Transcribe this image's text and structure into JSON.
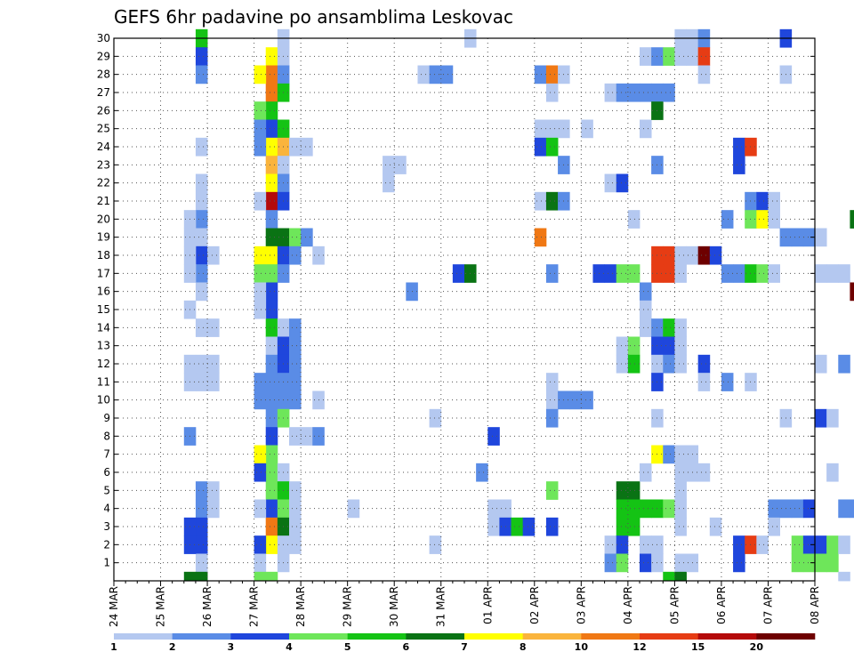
{
  "chart_data": {
    "type": "heatmap",
    "title": "GEFS 6hr padavine po ansamblima Leskovac",
    "xlabel": "",
    "ylabel": "",
    "x_ticks": [
      "24 MAR",
      "25 MAR",
      "26 MAR",
      "27 MAR",
      "28 MAR",
      "29 MAR",
      "30 MAR",
      "31 MAR",
      "01 APR",
      "02 APR",
      "03 APR",
      "04 APR",
      "05 APR",
      "06 APR",
      "07 APR",
      "08 APR"
    ],
    "y_ticks": [
      "1",
      "2",
      "3",
      "4",
      "5",
      "6",
      "7",
      "8",
      "9",
      "10",
      "11",
      "12",
      "13",
      "14",
      "15",
      "16",
      "17",
      "18",
      "19",
      "20",
      "21",
      "22",
      "23",
      "24",
      "25",
      "26",
      "27",
      "28",
      "29",
      "30"
    ],
    "ylim": [
      0,
      30
    ],
    "x_step_hours": 6,
    "x_start": "24 MAR 00",
    "grid": true,
    "legend": {
      "position": "bottom",
      "levels": [
        "1",
        "2",
        "3",
        "4",
        "5",
        "6",
        "7",
        "8",
        "10",
        "12",
        "15",
        "20"
      ],
      "colors": [
        "#b4c8f0",
        "#5a8ce6",
        "#1f46dc",
        "#6ee65a",
        "#14c314",
        "#0a7314",
        "#ffff00",
        "#fab43c",
        "#f07814",
        "#e63c14",
        "#b40a0a",
        "#6e0000"
      ]
    },
    "cells": [
      [
        7,
        30,
        5
      ],
      [
        7,
        29,
        3
      ],
      [
        7,
        28,
        2
      ],
      [
        7,
        24,
        1
      ],
      [
        7,
        22,
        1
      ],
      [
        7,
        21,
        1
      ],
      [
        7,
        20,
        2
      ],
      [
        7,
        19,
        1
      ],
      [
        7,
        18,
        3
      ],
      [
        7,
        17,
        2
      ],
      [
        7,
        16,
        1
      ],
      [
        7,
        14,
        1
      ],
      [
        7,
        12,
        1
      ],
      [
        7,
        11,
        1
      ],
      [
        7,
        5,
        2
      ],
      [
        7,
        4,
        2
      ],
      [
        7,
        3,
        3
      ],
      [
        7,
        2,
        3
      ],
      [
        7,
        1,
        1
      ],
      [
        7,
        0,
        6
      ],
      [
        6,
        20,
        1
      ],
      [
        6,
        19,
        1
      ],
      [
        6,
        18,
        1
      ],
      [
        6,
        17,
        1
      ],
      [
        6,
        15,
        1
      ],
      [
        6,
        12,
        1
      ],
      [
        6,
        11,
        1
      ],
      [
        6,
        8,
        2
      ],
      [
        6,
        3,
        3
      ],
      [
        6,
        2,
        3
      ],
      [
        6,
        0,
        6
      ],
      [
        8,
        18,
        1
      ],
      [
        8,
        14,
        1
      ],
      [
        8,
        12,
        1
      ],
      [
        8,
        11,
        1
      ],
      [
        8,
        5,
        1
      ],
      [
        8,
        4,
        1
      ],
      [
        13,
        29,
        7
      ],
      [
        13,
        28,
        9
      ],
      [
        13,
        27,
        9
      ],
      [
        13,
        26,
        5
      ],
      [
        13,
        25,
        3
      ],
      [
        13,
        24,
        7
      ],
      [
        13,
        23,
        8
      ],
      [
        13,
        22,
        7
      ],
      [
        13,
        21,
        11
      ],
      [
        13,
        20,
        2
      ],
      [
        13,
        19,
        6
      ],
      [
        13,
        18,
        7
      ],
      [
        13,
        17,
        4
      ],
      [
        13,
        16,
        3
      ],
      [
        13,
        15,
        3
      ],
      [
        13,
        14,
        5
      ],
      [
        13,
        13,
        1
      ],
      [
        13,
        12,
        2
      ],
      [
        13,
        11,
        2
      ],
      [
        13,
        10,
        2
      ],
      [
        13,
        9,
        2
      ],
      [
        13,
        8,
        3
      ],
      [
        13,
        7,
        4
      ],
      [
        13,
        6,
        4
      ],
      [
        13,
        5,
        4
      ],
      [
        13,
        4,
        3
      ],
      [
        13,
        3,
        9
      ],
      [
        13,
        2,
        7
      ],
      [
        13,
        0,
        4
      ],
      [
        12,
        28,
        7
      ],
      [
        12,
        26,
        4
      ],
      [
        12,
        25,
        2
      ],
      [
        12,
        24,
        2
      ],
      [
        12,
        21,
        1
      ],
      [
        12,
        18,
        7
      ],
      [
        12,
        17,
        4
      ],
      [
        12,
        16,
        1
      ],
      [
        12,
        15,
        1
      ],
      [
        12,
        11,
        2
      ],
      [
        12,
        10,
        2
      ],
      [
        12,
        7,
        7
      ],
      [
        12,
        6,
        3
      ],
      [
        12,
        4,
        1
      ],
      [
        12,
        2,
        3
      ],
      [
        12,
        1,
        1
      ],
      [
        12,
        0,
        4
      ],
      [
        14,
        30,
        1
      ],
      [
        14,
        29,
        1
      ],
      [
        14,
        28,
        2
      ],
      [
        14,
        27,
        5
      ],
      [
        14,
        25,
        5
      ],
      [
        14,
        24,
        8
      ],
      [
        14,
        23,
        1
      ],
      [
        14,
        22,
        2
      ],
      [
        14,
        21,
        3
      ],
      [
        14,
        19,
        6
      ],
      [
        14,
        18,
        3
      ],
      [
        14,
        17,
        2
      ],
      [
        14,
        14,
        1
      ],
      [
        14,
        13,
        3
      ],
      [
        14,
        12,
        3
      ],
      [
        14,
        11,
        2
      ],
      [
        14,
        10,
        2
      ],
      [
        14,
        9,
        4
      ],
      [
        14,
        6,
        1
      ],
      [
        14,
        5,
        5
      ],
      [
        14,
        4,
        4
      ],
      [
        14,
        3,
        6
      ],
      [
        14,
        2,
        1
      ],
      [
        14,
        1,
        1
      ],
      [
        15,
        24,
        1
      ],
      [
        15,
        19,
        4
      ],
      [
        15,
        18,
        2
      ],
      [
        15,
        14,
        2
      ],
      [
        15,
        13,
        2
      ],
      [
        15,
        12,
        2
      ],
      [
        15,
        11,
        2
      ],
      [
        15,
        10,
        2
      ],
      [
        15,
        8,
        1
      ],
      [
        15,
        5,
        1
      ],
      [
        15,
        4,
        1
      ],
      [
        15,
        3,
        1
      ],
      [
        15,
        2,
        1
      ],
      [
        16,
        24,
        1
      ],
      [
        16,
        19,
        2
      ],
      [
        16,
        8,
        1
      ],
      [
        17,
        18,
        1
      ],
      [
        17,
        10,
        1
      ],
      [
        17,
        8,
        2
      ],
      [
        20,
        4,
        1
      ],
      [
        23,
        23,
        1
      ],
      [
        23,
        22,
        1
      ],
      [
        24,
        23,
        1
      ],
      [
        25,
        16,
        2
      ],
      [
        26,
        28,
        1
      ],
      [
        27,
        28,
        2
      ],
      [
        27,
        9,
        1
      ],
      [
        27,
        2,
        1
      ],
      [
        28,
        28,
        2
      ],
      [
        29,
        17,
        3
      ],
      [
        30,
        17,
        6
      ],
      [
        30,
        30,
        1
      ],
      [
        31,
        6,
        2
      ],
      [
        32,
        8,
        3
      ],
      [
        32,
        4,
        1
      ],
      [
        32,
        3,
        1
      ],
      [
        33,
        4,
        1
      ],
      [
        33,
        3,
        3
      ],
      [
        34,
        3,
        5
      ],
      [
        35,
        3,
        3
      ],
      [
        36,
        28,
        2
      ],
      [
        36,
        25,
        1
      ],
      [
        36,
        24,
        3
      ],
      [
        36,
        21,
        1
      ],
      [
        36,
        19,
        9
      ],
      [
        37,
        28,
        9
      ],
      [
        37,
        27,
        1
      ],
      [
        37,
        25,
        1
      ],
      [
        37,
        24,
        5
      ],
      [
        37,
        21,
        6
      ],
      [
        37,
        17,
        2
      ],
      [
        37,
        11,
        1
      ],
      [
        37,
        10,
        1
      ],
      [
        37,
        9,
        2
      ],
      [
        37,
        5,
        4
      ],
      [
        37,
        3,
        3
      ],
      [
        38,
        28,
        1
      ],
      [
        38,
        25,
        1
      ],
      [
        38,
        23,
        2
      ],
      [
        38,
        21,
        2
      ],
      [
        38,
        10,
        2
      ],
      [
        39,
        10,
        2
      ],
      [
        40,
        25,
        1
      ],
      [
        40,
        10,
        2
      ],
      [
        41,
        17,
        3
      ],
      [
        42,
        27,
        1
      ],
      [
        42,
        22,
        1
      ],
      [
        42,
        17,
        3
      ],
      [
        42,
        2,
        1
      ],
      [
        42,
        1,
        2
      ],
      [
        43,
        27,
        2
      ],
      [
        43,
        22,
        3
      ],
      [
        43,
        17,
        4
      ],
      [
        43,
        13,
        1
      ],
      [
        43,
        12,
        1
      ],
      [
        43,
        5,
        6
      ],
      [
        43,
        4,
        5
      ],
      [
        43,
        3,
        5
      ],
      [
        43,
        2,
        3
      ],
      [
        43,
        1,
        4
      ],
      [
        44,
        27,
        2
      ],
      [
        44,
        20,
        1
      ],
      [
        44,
        17,
        4
      ],
      [
        44,
        13,
        4
      ],
      [
        44,
        12,
        5
      ],
      [
        44,
        5,
        6
      ],
      [
        44,
        4,
        5
      ],
      [
        44,
        3,
        5
      ],
      [
        45,
        29,
        1
      ],
      [
        45,
        27,
        2
      ],
      [
        45,
        25,
        1
      ],
      [
        45,
        16,
        2
      ],
      [
        45,
        15,
        1
      ],
      [
        45,
        14,
        1
      ],
      [
        45,
        6,
        1
      ],
      [
        45,
        4,
        5
      ],
      [
        45,
        2,
        1
      ],
      [
        45,
        1,
        3
      ],
      [
        46,
        29,
        2
      ],
      [
        46,
        27,
        2
      ],
      [
        46,
        26,
        6
      ],
      [
        46,
        23,
        2
      ],
      [
        46,
        18,
        10
      ],
      [
        46,
        17,
        10
      ],
      [
        46,
        14,
        2
      ],
      [
        46,
        13,
        3
      ],
      [
        46,
        12,
        1
      ],
      [
        46,
        11,
        3
      ],
      [
        46,
        9,
        1
      ],
      [
        46,
        7,
        7
      ],
      [
        46,
        4,
        5
      ],
      [
        46,
        2,
        1
      ],
      [
        46,
        1,
        1
      ],
      [
        47,
        29,
        4
      ],
      [
        47,
        27,
        2
      ],
      [
        47,
        18,
        10
      ],
      [
        47,
        17,
        10
      ],
      [
        47,
        14,
        5
      ],
      [
        47,
        13,
        3
      ],
      [
        47,
        12,
        2
      ],
      [
        47,
        7,
        2
      ],
      [
        47,
        4,
        4
      ],
      [
        47,
        0,
        5
      ],
      [
        48,
        30,
        1
      ],
      [
        48,
        29,
        1
      ],
      [
        48,
        18,
        1
      ],
      [
        48,
        17,
        1
      ],
      [
        48,
        14,
        1
      ],
      [
        48,
        13,
        1
      ],
      [
        48,
        12,
        1
      ],
      [
        48,
        7,
        1
      ],
      [
        48,
        6,
        1
      ],
      [
        48,
        5,
        1
      ],
      [
        48,
        4,
        1
      ],
      [
        48,
        3,
        1
      ],
      [
        48,
        1,
        1
      ],
      [
        48,
        0,
        6
      ],
      [
        49,
        30,
        1
      ],
      [
        49,
        29,
        1
      ],
      [
        49,
        18,
        1
      ],
      [
        49,
        7,
        1
      ],
      [
        49,
        6,
        1
      ],
      [
        49,
        1,
        1
      ],
      [
        50,
        30,
        2
      ],
      [
        50,
        29,
        10
      ],
      [
        50,
        28,
        1
      ],
      [
        50,
        18,
        12
      ],
      [
        50,
        12,
        3
      ],
      [
        50,
        11,
        1
      ],
      [
        50,
        6,
        1
      ],
      [
        51,
        18,
        3
      ],
      [
        51,
        3,
        1
      ],
      [
        52,
        20,
        2
      ],
      [
        52,
        17,
        2
      ],
      [
        52,
        11,
        2
      ],
      [
        53,
        24,
        3
      ],
      [
        53,
        23,
        3
      ],
      [
        53,
        17,
        2
      ],
      [
        53,
        2,
        3
      ],
      [
        53,
        1,
        3
      ],
      [
        54,
        24,
        10
      ],
      [
        54,
        21,
        2
      ],
      [
        54,
        20,
        4
      ],
      [
        54,
        17,
        5
      ],
      [
        54,
        11,
        1
      ],
      [
        54,
        2,
        10
      ],
      [
        55,
        21,
        3
      ],
      [
        55,
        20,
        7
      ],
      [
        55,
        17,
        4
      ],
      [
        55,
        2,
        1
      ],
      [
        56,
        21,
        1
      ],
      [
        56,
        20,
        1
      ],
      [
        56,
        17,
        1
      ],
      [
        56,
        4,
        2
      ],
      [
        56,
        3,
        1
      ],
      [
        57,
        30,
        3
      ],
      [
        57,
        28,
        1
      ],
      [
        57,
        19,
        2
      ],
      [
        57,
        9,
        1
      ],
      [
        57,
        4,
        2
      ],
      [
        58,
        19,
        2
      ],
      [
        58,
        4,
        2
      ],
      [
        58,
        2,
        4
      ],
      [
        58,
        1,
        4
      ],
      [
        59,
        19,
        2
      ],
      [
        59,
        4,
        3
      ],
      [
        59,
        2,
        3
      ],
      [
        59,
        1,
        4
      ],
      [
        60,
        19,
        1
      ],
      [
        60,
        17,
        1
      ],
      [
        60,
        12,
        1
      ],
      [
        60,
        9,
        3
      ],
      [
        60,
        2,
        3
      ],
      [
        60,
        1,
        4
      ],
      [
        61,
        17,
        1
      ],
      [
        61,
        9,
        1
      ],
      [
        61,
        6,
        1
      ],
      [
        61,
        2,
        4
      ],
      [
        61,
        1,
        4
      ],
      [
        62,
        17,
        1
      ],
      [
        62,
        12,
        2
      ],
      [
        62,
        4,
        2
      ],
      [
        62,
        2,
        1
      ],
      [
        62,
        0,
        1
      ],
      [
        63,
        20,
        6
      ],
      [
        63,
        16,
        12
      ],
      [
        63,
        4,
        2
      ],
      [
        64,
        21,
        1
      ],
      [
        64,
        20,
        12
      ],
      [
        64,
        16,
        12
      ],
      [
        64,
        7,
        2
      ],
      [
        64,
        4,
        2
      ],
      [
        64,
        2,
        1
      ],
      [
        65,
        20,
        5
      ],
      [
        65,
        19,
        1
      ],
      [
        65,
        16,
        1
      ],
      [
        65,
        15,
        1
      ],
      [
        65,
        4,
        2
      ],
      [
        65,
        2,
        1
      ],
      [
        66,
        25,
        5
      ],
      [
        66,
        22,
        1
      ],
      [
        66,
        20,
        2
      ],
      [
        66,
        19,
        2
      ],
      [
        66,
        16,
        5
      ],
      [
        66,
        14,
        1
      ],
      [
        66,
        4,
        3
      ],
      [
        66,
        2,
        1
      ],
      [
        67,
        25,
        2
      ],
      [
        67,
        22,
        4
      ],
      [
        67,
        21,
        1
      ],
      [
        67,
        20,
        1
      ],
      [
        67,
        18,
        1
      ],
      [
        67,
        17,
        1
      ],
      [
        67,
        16,
        4
      ],
      [
        67,
        14,
        1
      ],
      [
        67,
        4,
        3
      ],
      [
        67,
        2,
        1
      ],
      [
        68,
        28,
        2
      ],
      [
        68,
        25,
        2
      ],
      [
        68,
        22,
        4
      ],
      [
        68,
        21,
        1
      ],
      [
        68,
        20,
        1
      ],
      [
        68,
        19,
        1
      ]
    ]
  }
}
